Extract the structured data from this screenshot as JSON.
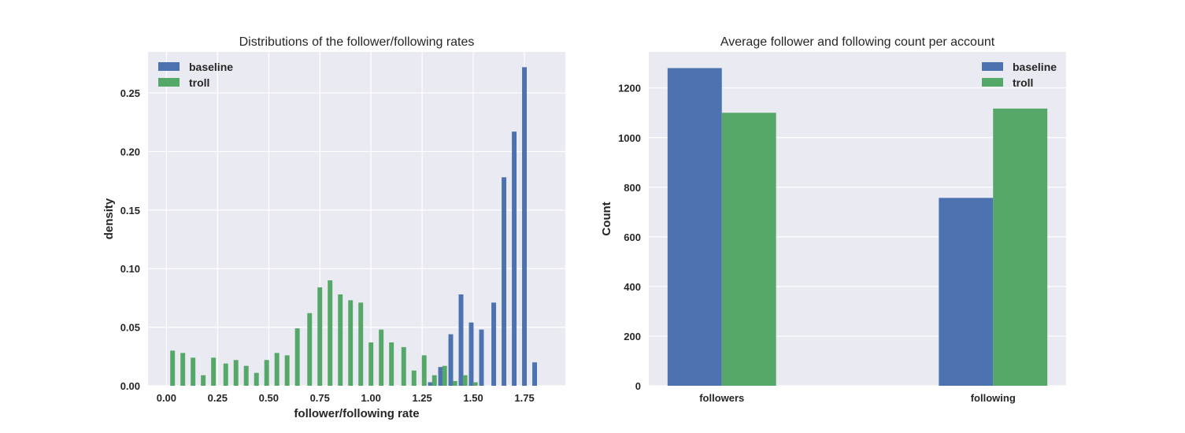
{
  "colors": {
    "baseline": "#4c72b0",
    "troll": "#55a868",
    "axes_bg": "#eaeaf2",
    "grid": "#ffffff"
  },
  "chart_data": [
    {
      "type": "bar",
      "title": "Distributions of the follower/following rates",
      "xlabel": "follower/following rate",
      "ylabel": "density",
      "xlim": [
        -0.09,
        1.95
      ],
      "ylim": [
        0,
        0.285
      ],
      "xticks": [
        0.0,
        0.25,
        0.5,
        0.75,
        1.0,
        1.25,
        1.5,
        1.75
      ],
      "xtick_labels": [
        "0.00",
        "0.25",
        "0.50",
        "0.75",
        "1.00",
        "1.25",
        "1.50",
        "1.75"
      ],
      "yticks": [
        0.0,
        0.05,
        0.1,
        0.15,
        0.2,
        0.25
      ],
      "ytick_labels": [
        "0.00",
        "0.05",
        "0.10",
        "0.15",
        "0.20",
        "0.25"
      ],
      "grid": true,
      "legend": "upper left",
      "bin_width": 0.052,
      "series": [
        {
          "name": "baseline",
          "x": [
            1.29,
            1.34,
            1.39,
            1.44,
            1.49,
            1.54,
            1.6,
            1.65,
            1.7,
            1.75,
            1.8
          ],
          "values": [
            0.003,
            0.016,
            0.044,
            0.078,
            0.054,
            0.048,
            0.071,
            0.178,
            0.217,
            0.272,
            0.02
          ]
        },
        {
          "name": "troll",
          "x": [
            0.03,
            0.08,
            0.13,
            0.18,
            0.23,
            0.29,
            0.34,
            0.39,
            0.44,
            0.49,
            0.54,
            0.59,
            0.64,
            0.7,
            0.75,
            0.8,
            0.85,
            0.9,
            0.95,
            1.0,
            1.05,
            1.1,
            1.16,
            1.21,
            1.26,
            1.31,
            1.36,
            1.41,
            1.46,
            1.51,
            1.56
          ],
          "values": [
            0.03,
            0.028,
            0.024,
            0.009,
            0.024,
            0.019,
            0.022,
            0.017,
            0.011,
            0.022,
            0.028,
            0.026,
            0.049,
            0.062,
            0.084,
            0.09,
            0.078,
            0.073,
            0.071,
            0.037,
            0.048,
            0.037,
            0.033,
            0.013,
            0.026,
            0.009,
            0.017,
            0.004,
            0.009,
            0.003,
            0.0
          ]
        }
      ]
    },
    {
      "type": "bar",
      "title": "Average follower and following count per account",
      "xlabel": "",
      "ylabel": "Count",
      "ylim": [
        0,
        1345
      ],
      "categories": [
        "followers",
        "following"
      ],
      "yticks": [
        0,
        200,
        400,
        600,
        800,
        1000,
        1200
      ],
      "ytick_labels": [
        "0",
        "200",
        "400",
        "600",
        "800",
        "1000",
        "1200"
      ],
      "grid": true,
      "legend": "upper right",
      "series": [
        {
          "name": "baseline",
          "values": [
            1280,
            757
          ]
        },
        {
          "name": "troll",
          "values": [
            1100,
            1117
          ]
        }
      ]
    }
  ]
}
